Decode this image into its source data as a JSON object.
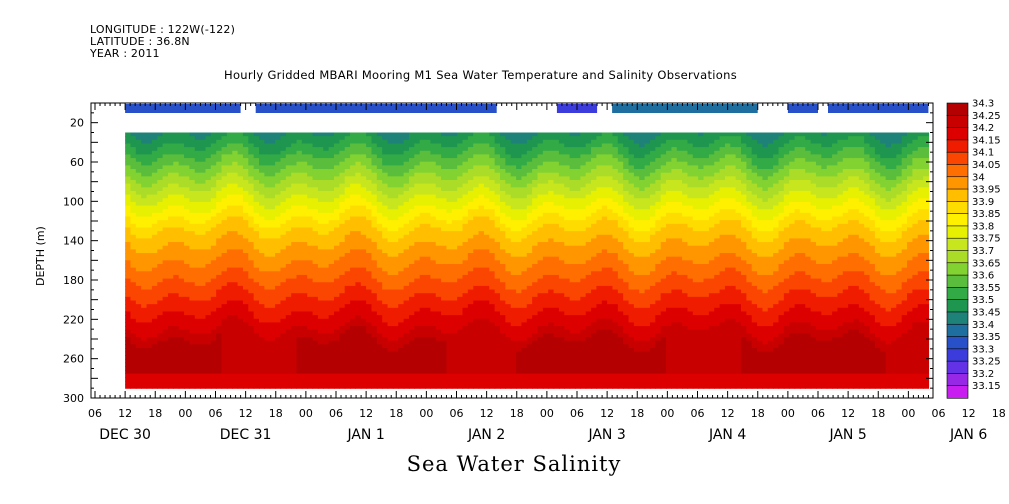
{
  "header": {
    "longitude": "LONGITUDE : 122W(-122)",
    "latitude": "LATITUDE : 36.8N",
    "year": "YEAR : 2011"
  },
  "chart_data": {
    "type": "heatmap",
    "title": "Hourly Gridded MBARI Mooring M1 Sea Water Temperature and Salinity Observations",
    "caption": "Sea Water Salinity",
    "ylabel": "DEPTH (m)",
    "ylim": [
      300,
      0
    ],
    "y_ticks": [
      "20",
      "60",
      "100",
      "140",
      "180",
      "220",
      "260",
      "300"
    ],
    "x_hour_ticks": [
      "06",
      "12",
      "18",
      "00",
      "06",
      "12",
      "18",
      "00",
      "06",
      "12",
      "18",
      "00",
      "06",
      "12",
      "18",
      "00",
      "06",
      "12",
      "18",
      "00",
      "06",
      "12",
      "18",
      "00",
      "06",
      "12",
      "18",
      "00",
      "06",
      "12",
      "18",
      "00"
    ],
    "x_day_labels": [
      "DEC 30",
      "DEC 31",
      "JAN  1",
      "JAN  2",
      "JAN  3",
      "JAN  4",
      "JAN  5",
      "JAN  6"
    ],
    "data_depth_range": [
      30,
      290
    ],
    "colorbar_levels": [
      "34.3",
      "34.25",
      "34.2",
      "34.15",
      "34.1",
      "34.05",
      "34",
      "33.95",
      "33.9",
      "33.85",
      "33.8",
      "33.75",
      "33.7",
      "33.65",
      "33.6",
      "33.55",
      "33.5",
      "33.45",
      "33.4",
      "33.35",
      "33.3",
      "33.25",
      "33.2",
      "33.15"
    ],
    "colorbar_colors": [
      "#b40000",
      "#c80000",
      "#dc0000",
      "#f01c00",
      "#fa4600",
      "#ff6e00",
      "#ff9600",
      "#ffbe00",
      "#ffdc00",
      "#fff000",
      "#e6f000",
      "#c8e61e",
      "#aadc28",
      "#82d232",
      "#5abe3c",
      "#32aa46",
      "#1e9650",
      "#1e8278",
      "#1e6ea0",
      "#2850c8",
      "#3c3cdc",
      "#6432e6",
      "#9628e6",
      "#c81ef0"
    ],
    "surface_bar_segments": [
      {
        "from": "DEC 30 12:00",
        "to": "DEC 31 11:00",
        "value": 33.3
      },
      {
        "from": "DEC 31 14:00",
        "to": "JAN 2 14:00",
        "value": 33.3
      },
      {
        "from": "JAN 3 02:00",
        "to": "JAN 3 10:00",
        "value": 33.25
      },
      {
        "from": "JAN 3 13:00",
        "to": "JAN 4 18:00",
        "value": 33.35
      },
      {
        "from": "JAN 5 00:00",
        "to": "JAN 5 06:00",
        "value": 33.3
      },
      {
        "from": "JAN 5 08:00",
        "to": "JAN 6 04:00",
        "value": 33.3
      }
    ]
  }
}
